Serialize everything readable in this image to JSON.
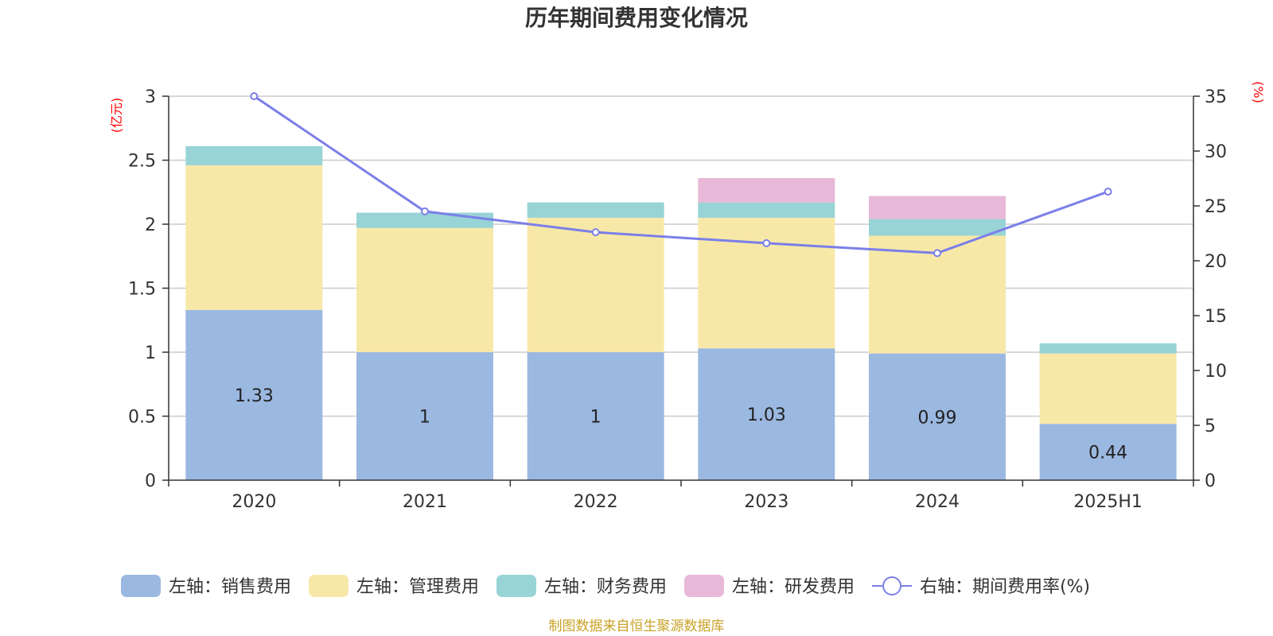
{
  "chart_data": {
    "type": "bar",
    "title": "历年期间费用变化情况",
    "categories": [
      "2020",
      "2021",
      "2022",
      "2023",
      "2024",
      "2025H1"
    ],
    "stacked": true,
    "series": [
      {
        "name": "左轴：销售费用",
        "axis": "left",
        "color": "#9bb8e1",
        "values": [
          1.33,
          1.0,
          1.0,
          1.03,
          0.99,
          0.44
        ],
        "labels": [
          "1.33",
          "1",
          "1",
          "1.03",
          "0.99",
          "0.44"
        ]
      },
      {
        "name": "左轴：管理费用",
        "axis": "left",
        "color": "#f8e8a8",
        "values": [
          1.13,
          0.97,
          1.05,
          1.02,
          0.92,
          0.55
        ]
      },
      {
        "name": "左轴：财务费用",
        "axis": "left",
        "color": "#98d4d6",
        "values": [
          0.15,
          0.12,
          0.12,
          0.12,
          0.13,
          0.08
        ]
      },
      {
        "name": "左轴：研发费用",
        "axis": "left",
        "color": "#e8b8d8",
        "values": [
          0,
          0,
          0,
          0.19,
          0.18,
          0
        ]
      }
    ],
    "line": {
      "name": "右轴：期间费用率(%)",
      "axis": "right",
      "color": "#7b7fe8",
      "values": [
        35.0,
        24.5,
        22.6,
        21.6,
        20.7,
        26.3
      ]
    },
    "left_axis": {
      "unit": "(亿元)",
      "min": 0,
      "max": 3,
      "ticks": [
        "0",
        "0.5",
        "1",
        "1.5",
        "2",
        "2.5",
        "3"
      ]
    },
    "right_axis": {
      "unit": "(%)",
      "min": 0,
      "max": 35,
      "ticks": [
        "0",
        "5",
        "10",
        "15",
        "20",
        "25",
        "30",
        "35"
      ]
    },
    "grid": true,
    "legend_position": "bottom",
    "source": "制图数据来自恒生聚源数据库"
  }
}
